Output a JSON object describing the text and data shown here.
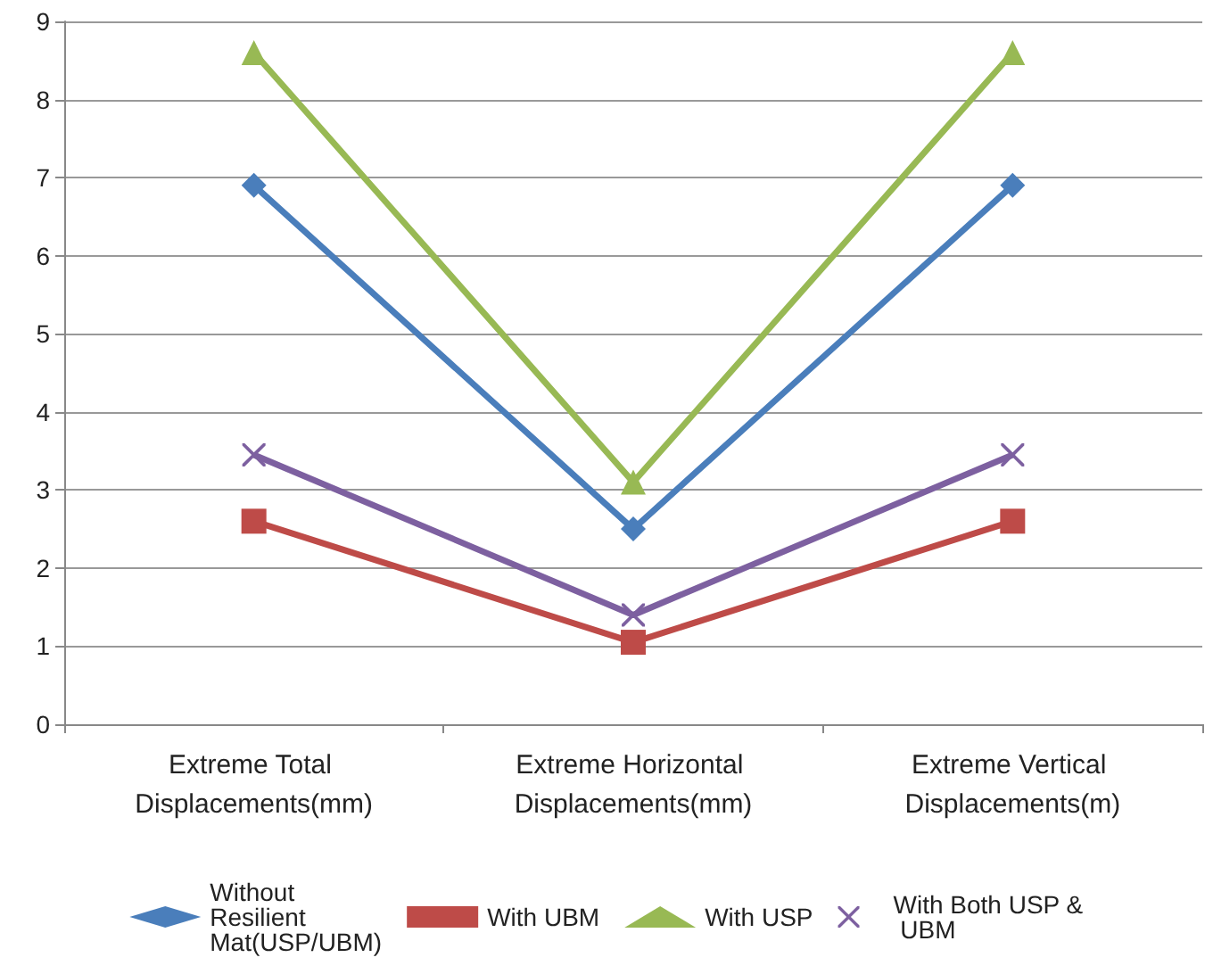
{
  "chart_data": {
    "type": "line",
    "categories": [
      "Extreme Total Displacements(mm)",
      "Extreme Horizontal Displacements(mm)",
      "Extreme Vertical Displacements(m)"
    ],
    "series": [
      {
        "name": "Without Resilient Mat(USP/UBM)",
        "color": "#4a7ebb",
        "marker": "diamond",
        "values": [
          6.9,
          2.5,
          6.9
        ]
      },
      {
        "name": "With UBM",
        "color": "#be4b48",
        "marker": "square",
        "values": [
          2.6,
          1.05,
          2.6
        ]
      },
      {
        "name": "With USP",
        "color": "#98b954",
        "marker": "triangle",
        "values": [
          8.6,
          3.1,
          8.6
        ]
      },
      {
        "name": "With Both USP & UBM",
        "color": "#7d60a0",
        "marker": "cross",
        "values": [
          3.45,
          1.4,
          3.45
        ]
      }
    ],
    "ylim": [
      0,
      9
    ],
    "yticks": [
      0,
      1,
      2,
      3,
      4,
      5,
      6,
      7,
      8,
      9
    ],
    "grid": "y",
    "legend": "bottom",
    "line_style": "solid"
  }
}
